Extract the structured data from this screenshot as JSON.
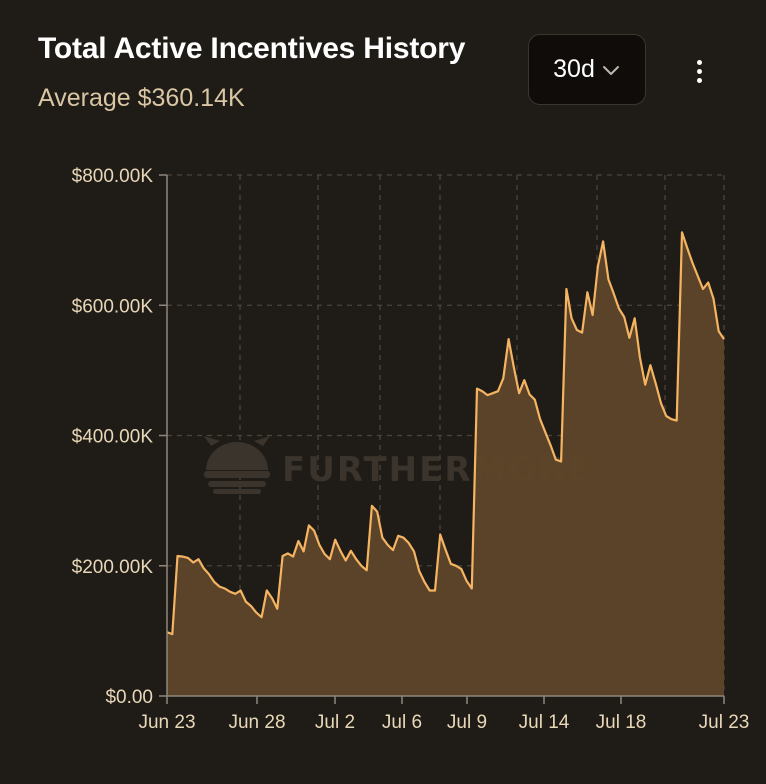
{
  "header": {
    "title": "Total Active Incentives History",
    "subtitle": "Average $360.14K"
  },
  "range_select": {
    "value": "30d",
    "icon": "chevron-down-icon"
  },
  "more_menu": {
    "icon": "vertical-ellipsis-icon"
  },
  "watermark": {
    "text": "FURTHERMORE",
    "icon": "furthermore-logo-icon"
  },
  "colors": {
    "line": "#f5b462",
    "fill": "#5e4629",
    "grid": "#4a443b",
    "axis": "#8f877c",
    "background": "#1f1b16"
  },
  "chart_data": {
    "type": "area",
    "x_tick_labels": [
      "Jun 23",
      "Jun 28",
      "Jul 2",
      "Jul 6",
      "Jul 9",
      "Jul 14",
      "Jul 18",
      "Jul 23"
    ],
    "y_tick_labels": [
      "$800.00K",
      "$600.00K",
      "$400.00K",
      "$200.00K",
      "$0.00"
    ],
    "ylim": [
      0,
      800000
    ],
    "grid": true,
    "x_start": "Jun 23",
    "x_end": "Jul 23",
    "values": [
      98000,
      95000,
      215000,
      214000,
      212000,
      205000,
      210000,
      196000,
      187000,
      175000,
      168000,
      165000,
      160000,
      157000,
      162000,
      145000,
      138000,
      128000,
      121000,
      162000,
      150000,
      134000,
      215000,
      219000,
      214000,
      238000,
      222000,
      262000,
      254000,
      232000,
      218000,
      210000,
      240000,
      223000,
      208000,
      223000,
      210000,
      200000,
      193000,
      292000,
      283000,
      243000,
      232000,
      224000,
      246000,
      243000,
      235000,
      222000,
      192000,
      175000,
      162000,
      162000,
      248000,
      225000,
      203000,
      200000,
      195000,
      177000,
      165000,
      472000,
      468000,
      462000,
      465000,
      468000,
      488000,
      548000,
      505000,
      465000,
      485000,
      463000,
      455000,
      425000,
      405000,
      385000,
      363000,
      360000,
      625000,
      580000,
      562000,
      558000,
      620000,
      585000,
      660000,
      698000,
      640000,
      618000,
      595000,
      582000,
      550000,
      580000,
      520000,
      478000,
      508000,
      480000,
      450000,
      430000,
      425000,
      423000,
      712000,
      688000,
      665000,
      645000,
      625000,
      635000,
      610000,
      560000,
      548000
    ]
  }
}
